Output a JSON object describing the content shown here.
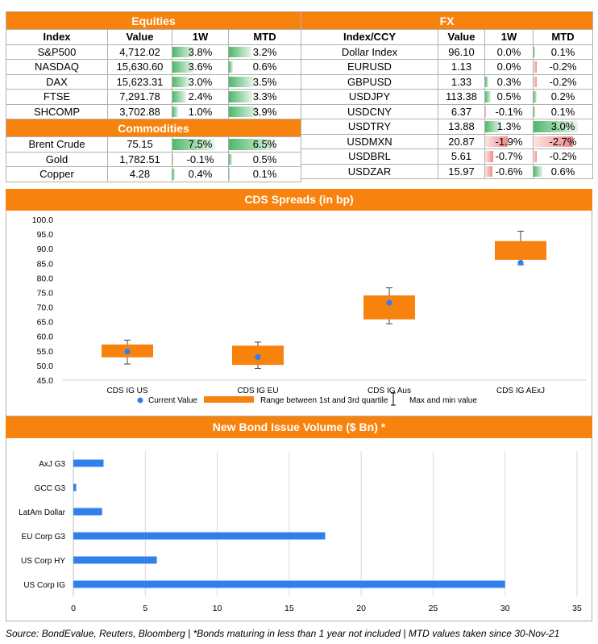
{
  "equities": {
    "title": "Equities",
    "headers": [
      "Index",
      "Value",
      "1W",
      "MTD"
    ],
    "rows": [
      {
        "name": "S&P500",
        "value": "4,712.02",
        "w1": "3.8%",
        "w1v": 3.8,
        "mtd": "3.2%",
        "mtdv": 3.2
      },
      {
        "name": "NASDAQ",
        "value": "15,630.60",
        "w1": "3.6%",
        "w1v": 3.6,
        "mtd": "0.6%",
        "mtdv": 0.6
      },
      {
        "name": "DAX",
        "value": "15,623.31",
        "w1": "3.0%",
        "w1v": 3.0,
        "mtd": "3.5%",
        "mtdv": 3.5
      },
      {
        "name": "FTSE",
        "value": "7,291.78",
        "w1": "2.4%",
        "w1v": 2.4,
        "mtd": "3.3%",
        "mtdv": 3.3
      },
      {
        "name": "SHCOMP",
        "value": "3,702.88",
        "w1": "1.0%",
        "w1v": 1.0,
        "mtd": "3.9%",
        "mtdv": 3.9
      }
    ]
  },
  "commodities": {
    "title": "Commodities",
    "rows": [
      {
        "name": "Brent Crude",
        "value": "75.15",
        "w1": "7.5%",
        "w1v": 7.5,
        "mtd": "6.5%",
        "mtdv": 6.5
      },
      {
        "name": "Gold",
        "value": "1,782.51",
        "w1": "-0.1%",
        "w1v": -0.1,
        "mtd": "0.5%",
        "mtdv": 0.5
      },
      {
        "name": "Copper",
        "value": "4.28",
        "w1": "0.4%",
        "w1v": 0.4,
        "mtd": "0.1%",
        "mtdv": 0.1
      }
    ]
  },
  "fx": {
    "title": "FX",
    "headers": [
      "Index/CCY",
      "Value",
      "1W",
      "MTD"
    ],
    "rows": [
      {
        "name": "Dollar Index",
        "value": "96.10",
        "w1": "0.0%",
        "w1v": 0.0,
        "mtd": "0.1%",
        "mtdv": 0.1
      },
      {
        "name": "EURUSD",
        "value": "1.13",
        "w1": "0.0%",
        "w1v": 0.0,
        "mtd": "-0.2%",
        "mtdv": -0.2
      },
      {
        "name": "GBPUSD",
        "value": "1.33",
        "w1": "0.3%",
        "w1v": 0.3,
        "mtd": "-0.2%",
        "mtdv": -0.2
      },
      {
        "name": "USDJPY",
        "value": "113.38",
        "w1": "0.5%",
        "w1v": 0.5,
        "mtd": "0.2%",
        "mtdv": 0.2
      },
      {
        "name": "USDCNY",
        "value": "6.37",
        "w1": "-0.1%",
        "w1v": -0.1,
        "mtd": "0.1%",
        "mtdv": 0.1
      },
      {
        "name": "USDTRY",
        "value": "13.88",
        "w1": "1.3%",
        "w1v": 1.3,
        "mtd": "3.0%",
        "mtdv": 3.0
      },
      {
        "name": "USDMXN",
        "value": "20.87",
        "w1": "-1.9%",
        "w1v": -1.9,
        "mtd": "-2.7%",
        "mtdv": -2.7
      },
      {
        "name": "USDBRL",
        "value": "5.61",
        "w1": "-0.7%",
        "w1v": -0.7,
        "mtd": "-0.2%",
        "mtdv": -0.2
      },
      {
        "name": "USDZAR",
        "value": "15.97",
        "w1": "-0.6%",
        "w1v": -0.6,
        "mtd": "0.6%",
        "mtdv": 0.6
      }
    ]
  },
  "cds": {
    "title": "CDS Spreads (in bp)"
  },
  "bonds": {
    "title": "New Bond Issue Volume ($ Bn) *"
  },
  "chart_data": [
    {
      "type": "box",
      "title": "CDS Spreads (in bp)",
      "categories": [
        "CDS IG US",
        "CDS IG EU",
        "CDS IG Aus",
        "CDS IG AExJ"
      ],
      "current": [
        54.8,
        52.9,
        71.5,
        85.2
      ],
      "q1": [
        52.8,
        50.2,
        65.8,
        86.2
      ],
      "q3": [
        57.2,
        56.8,
        74.0,
        92.6
      ],
      "min": [
        50.5,
        49.0,
        64.3,
        84.5
      ],
      "max": [
        58.7,
        58.0,
        76.6,
        96.0
      ],
      "ylim": [
        45,
        100
      ],
      "yticks": [
        "45.0",
        "50.0",
        "55.0",
        "60.0",
        "65.0",
        "70.0",
        "75.0",
        "80.0",
        "85.0",
        "90.0",
        "95.0",
        "100.0"
      ],
      "legend": {
        "current": "Current Value",
        "range": "Range between 1st and 3rd quartile",
        "minmax": "Max and min value"
      },
      "colors": {
        "current": "#2f80ed",
        "range": "#f7830e"
      }
    },
    {
      "type": "bar",
      "orientation": "horizontal",
      "title": "New Bond Issue Volume ($ Bn) *",
      "categories": [
        "AxJ G3",
        "GCC G3",
        "LatAm Dollar",
        "EU Corp G3",
        "US Corp HY",
        "US Corp IG"
      ],
      "values": [
        2.1,
        0.2,
        2.0,
        17.5,
        5.8,
        30.0
      ],
      "xlim": [
        0,
        35
      ],
      "xticks": [
        "0",
        "5",
        "10",
        "15",
        "20",
        "25",
        "30",
        "35"
      ],
      "grid": true,
      "colors": {
        "bar": "#2f80ed"
      }
    }
  ],
  "footer": "Source: BondEvalue, Reuters, Bloomberg | *Bonds maturing in less than 1 year not included | MTD values taken since 30-Nov-21"
}
